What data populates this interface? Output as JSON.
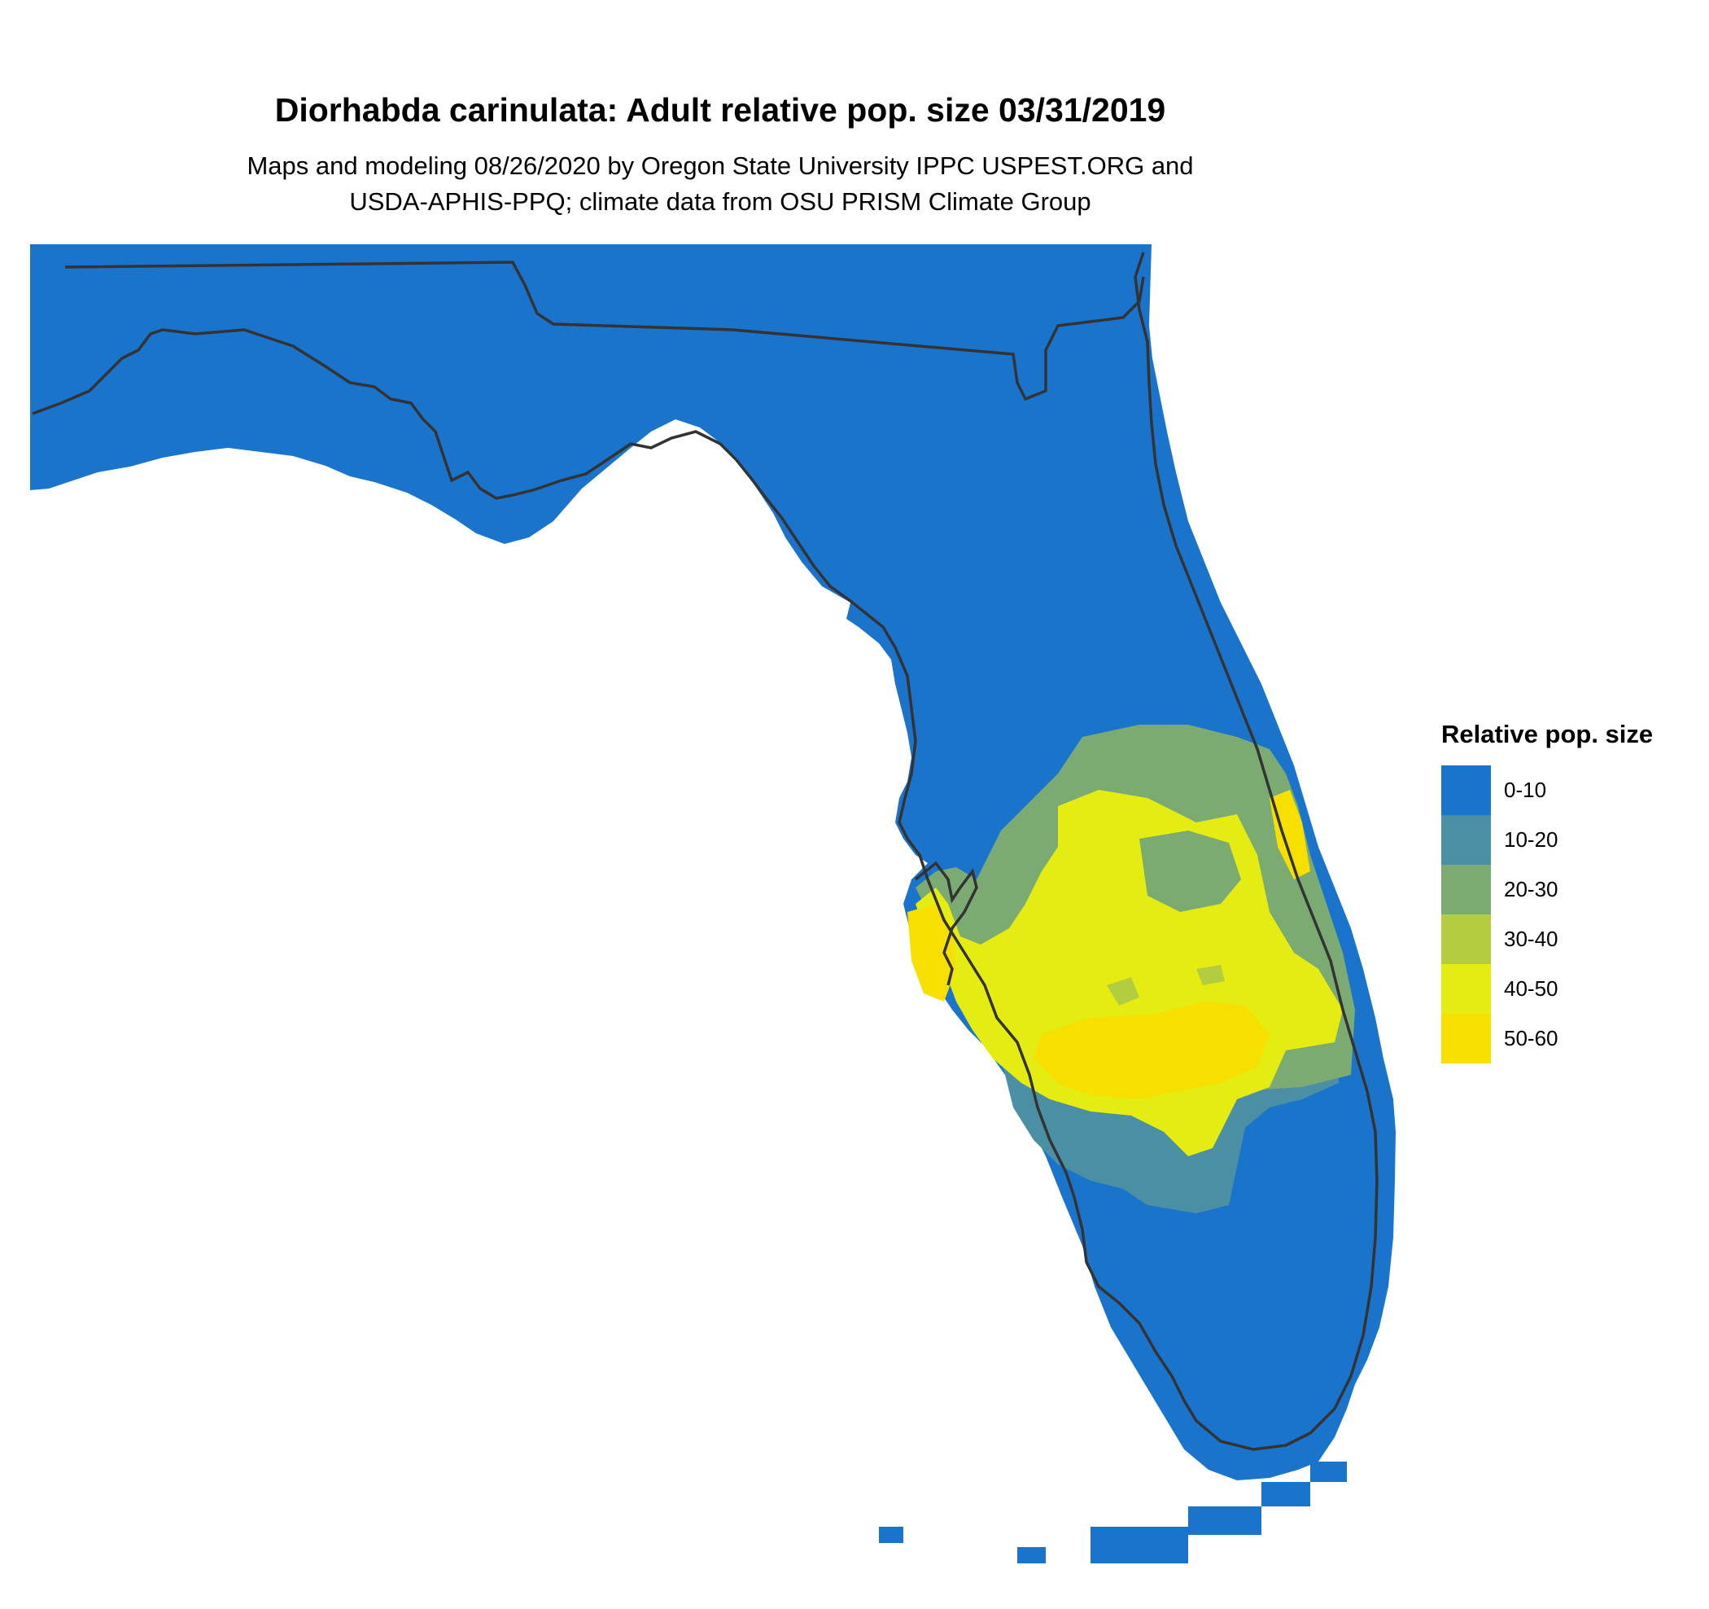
{
  "map": {
    "title": "Diorhabda carinulata: Adult relative pop. size 03/31/2019",
    "subtitle_line1": "Maps and modeling 08/26/2020 by Oregon State University IPPC USPEST.ORG and",
    "subtitle_line2": "USDA-APHIS-PPQ; climate data from OSU PRISM Climate Group",
    "region": "Florida"
  },
  "legend": {
    "title": "Relative pop. size",
    "classes": [
      {
        "label": "0-10",
        "color": "#1b74cc"
      },
      {
        "label": "10-20",
        "color": "#4a8fa3"
      },
      {
        "label": "20-30",
        "color": "#7bab72"
      },
      {
        "label": "30-40",
        "color": "#b3cc40"
      },
      {
        "label": "40-50",
        "color": "#e5ec12"
      },
      {
        "label": "50-60",
        "color": "#f7df00"
      }
    ]
  },
  "colors": {
    "outline": "#333333",
    "background": "#ffffff"
  }
}
